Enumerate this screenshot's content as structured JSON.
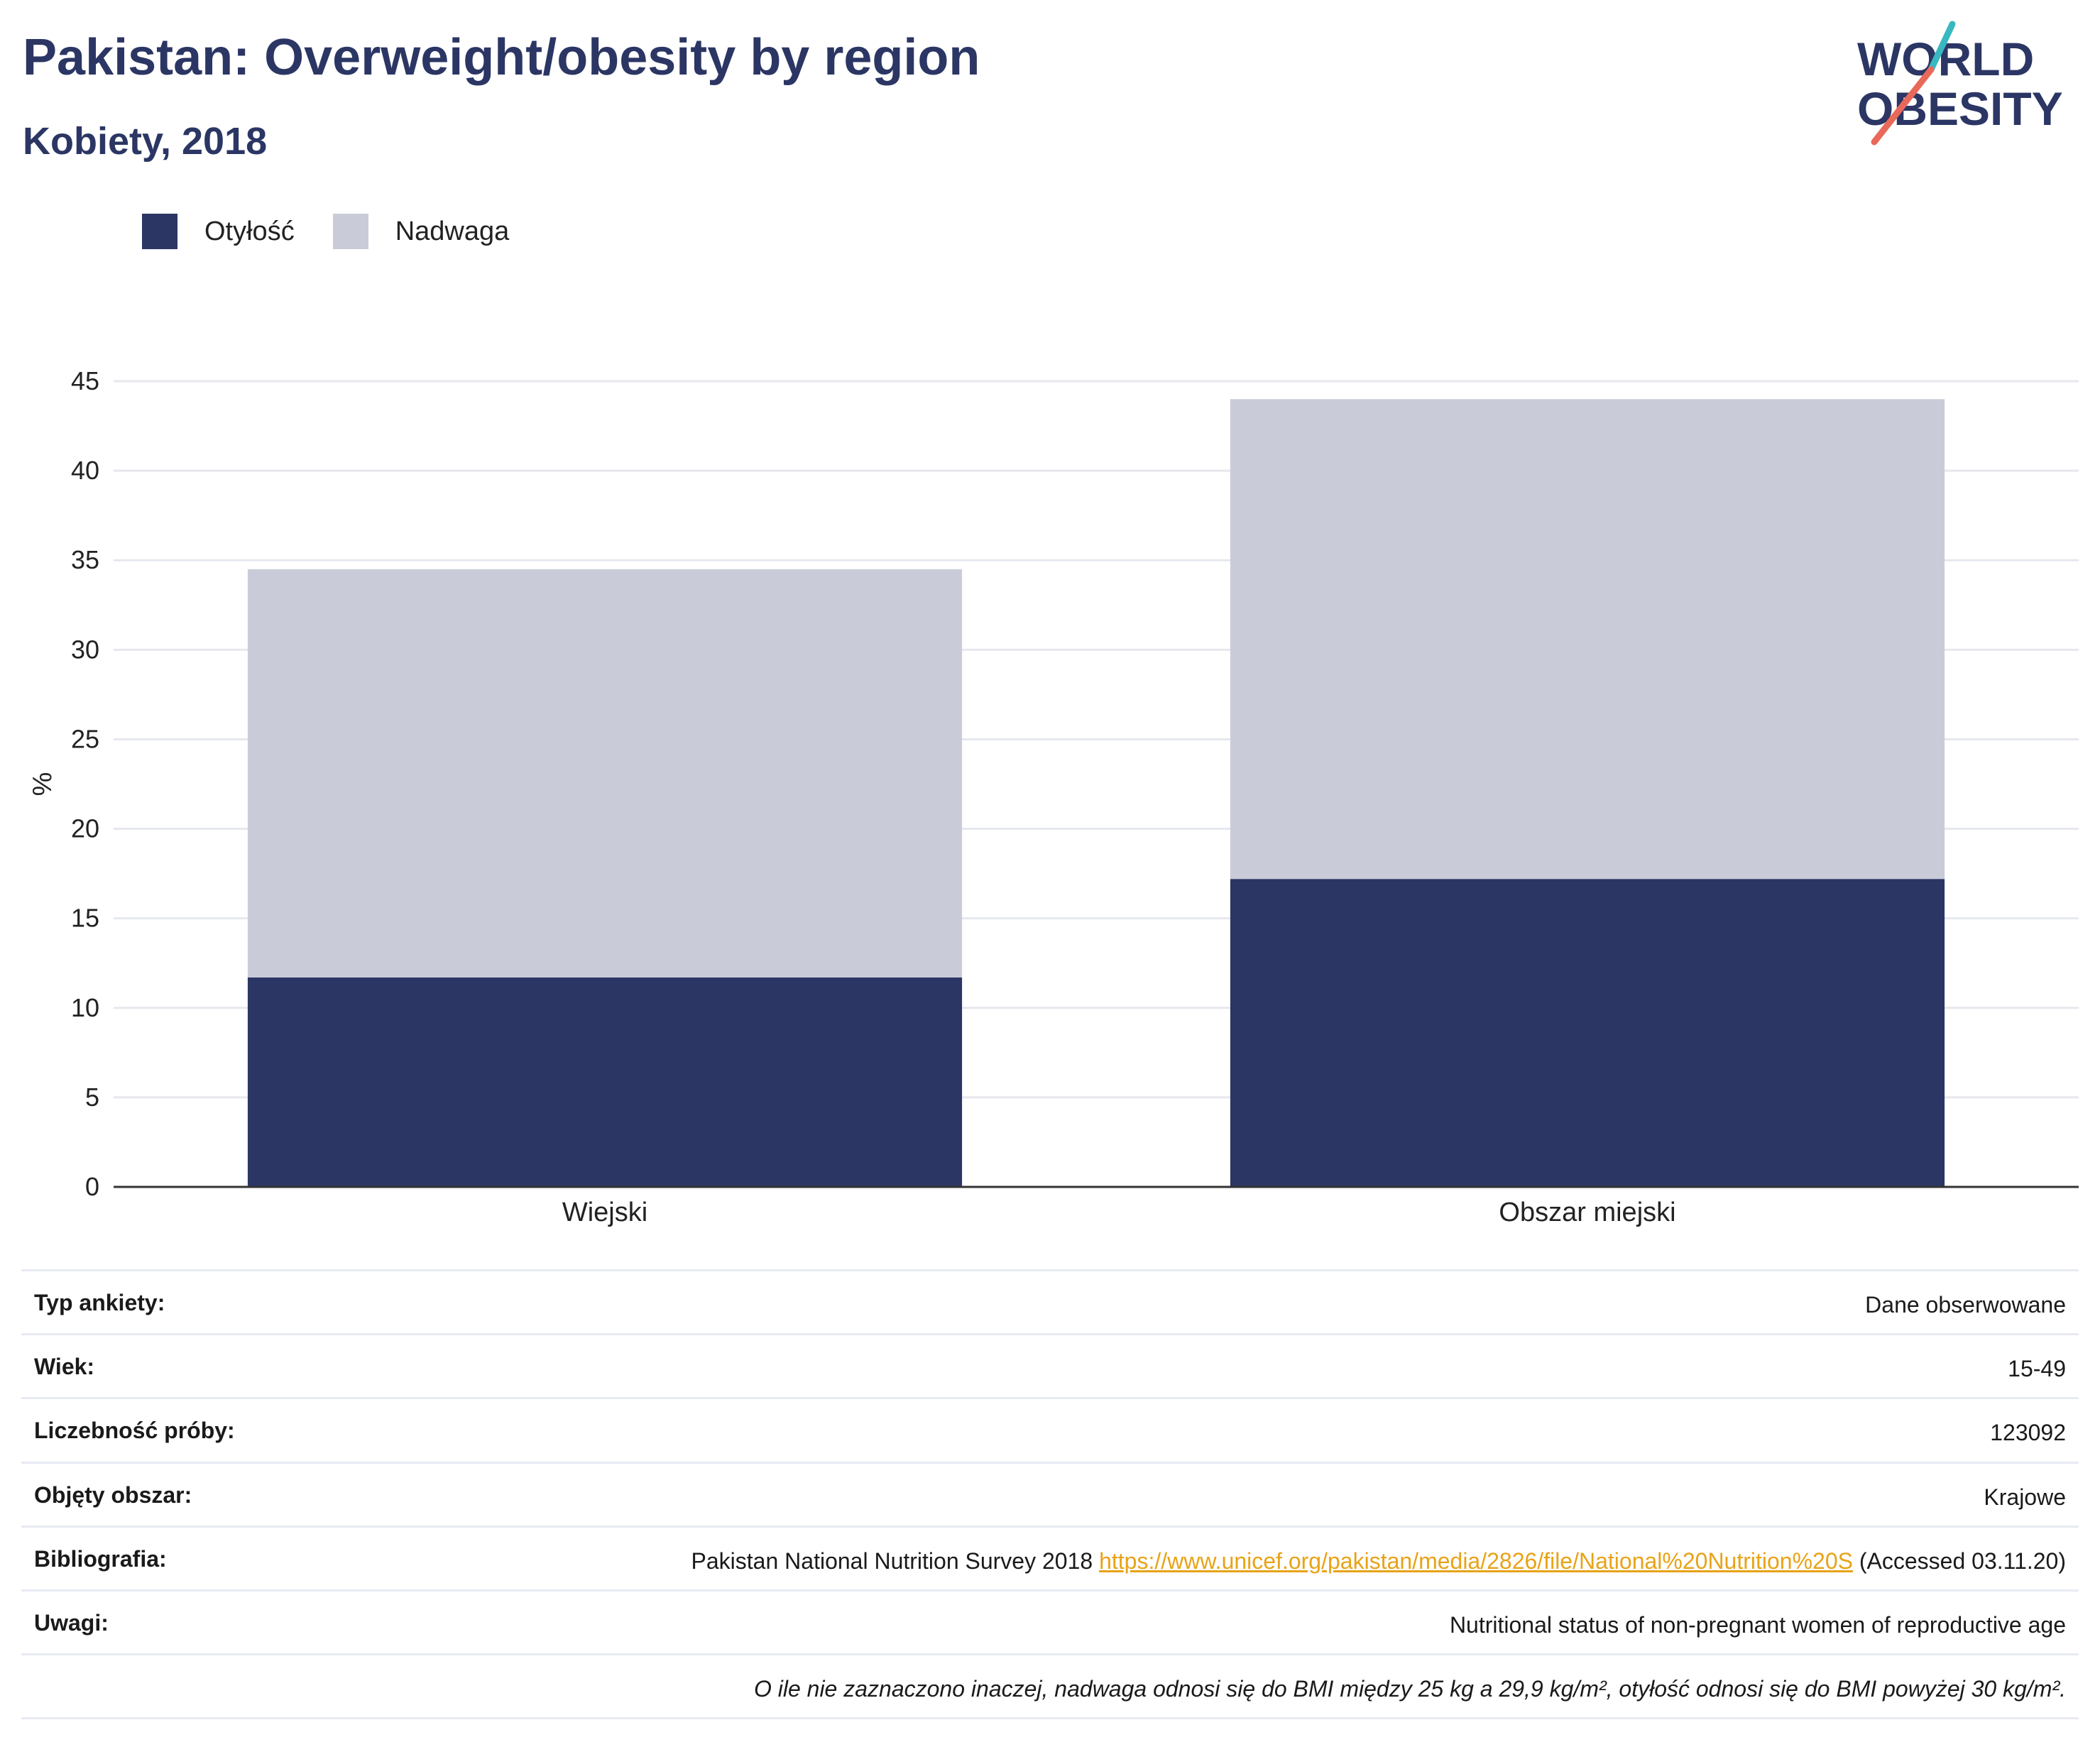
{
  "header": {
    "title": "Pakistan: Overweight/obesity by region",
    "subtitle": "Kobiety, 2018"
  },
  "logo": {
    "line1": "WORLD",
    "line2": "OBESITY",
    "colors": {
      "text": "#2b3664",
      "slash_top": "#38b8c0",
      "slash_bottom": "#e8695a"
    }
  },
  "legend": [
    {
      "label": "Otyłość",
      "color": "#2b3664"
    },
    {
      "label": "Nadwaga",
      "color": "#c9ccd8"
    }
  ],
  "chart_data": {
    "type": "bar",
    "stacked": true,
    "categories": [
      "Wiejski",
      "Obszar miejski"
    ],
    "series": [
      {
        "name": "Otyłość",
        "values": [
          11.7,
          17.2
        ],
        "color": "#2b3664"
      },
      {
        "name": "Nadwaga",
        "values": [
          22.8,
          26.8
        ],
        "color": "#c9ccd8"
      }
    ],
    "ylabel": "%",
    "ylim": [
      0,
      45
    ],
    "yticks": [
      0,
      5,
      10,
      15,
      20,
      25,
      30,
      35,
      40,
      45
    ],
    "grid": true,
    "legend_position": "top-left"
  },
  "info": {
    "rows": [
      {
        "label": "Typ ankiety:",
        "value": "Dane obserwowane"
      },
      {
        "label": "Wiek:",
        "value": "15-49"
      },
      {
        "label": "Liczebność próby:",
        "value": "123092"
      },
      {
        "label": "Objęty obszar:",
        "value": "Krajowe"
      }
    ],
    "bibliography": {
      "label": "Bibliografia:",
      "text_before": "Pakistan National Nutrition Survey 2018 ",
      "link": "https://www.unicef.org/pakistan/media/2826/file/National%20Nutrition%20S",
      "text_after": " (Accessed 03.11.20)"
    },
    "notes": {
      "label": "Uwagi:",
      "value": "Nutritional status of non-pregnant women of reproductive age"
    },
    "footnote": "O ile nie zaznaczono inaczej, nadwaga odnosi się do BMI między 25 kg a 29,9 kg/m², otyłość odnosi się do BMI powyżej 30 kg/m²."
  }
}
